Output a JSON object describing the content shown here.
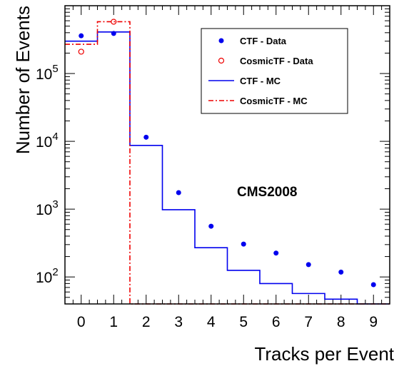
{
  "chart_data": {
    "type": "histogram",
    "xlabel": "Tracks per Event",
    "ylabel": "Number of Events",
    "xlim": [
      -0.5,
      9.5
    ],
    "ylim": [
      40,
      1000000
    ],
    "y_scale": "log",
    "x_ticks": [
      "0",
      "1",
      "2",
      "3",
      "4",
      "5",
      "6",
      "7",
      "8",
      "9"
    ],
    "y_ticks": [
      {
        "value": 100,
        "base": "10",
        "exp": "2"
      },
      {
        "value": 1000,
        "base": "10",
        "exp": "3"
      },
      {
        "value": 10000,
        "base": "10",
        "exp": "4"
      },
      {
        "value": 100000,
        "base": "10",
        "exp": "5"
      }
    ],
    "annotation": "CMS2008",
    "legend_position": "top-right",
    "series": [
      {
        "name": "CTF - Data",
        "style": "points-filled",
        "color": "#0000ee",
        "x": [
          0,
          1,
          2,
          3,
          4,
          5,
          6,
          7,
          8,
          9
        ],
        "values": [
          360000,
          390000,
          11500,
          1750,
          560,
          305,
          225,
          152,
          118,
          77
        ]
      },
      {
        "name": "CosmicTF - Data",
        "style": "points-open",
        "color": "#ee0000",
        "x": [
          0,
          1
        ],
        "values": [
          210000,
          580000
        ]
      },
      {
        "name": "CTF - MC",
        "style": "step-solid",
        "color": "#0000ee",
        "bin_edges": [
          -0.5,
          0.5,
          1.5,
          2.5,
          3.5,
          4.5,
          5.5,
          6.5,
          7.5,
          8.5,
          9.5
        ],
        "values": [
          300000,
          410000,
          8700,
          980,
          270,
          125,
          80,
          57,
          47,
          40
        ]
      },
      {
        "name": "CosmicTF - MC",
        "style": "step-dashdot",
        "color": "#ee0000",
        "bin_edges": [
          -0.5,
          0.5,
          1.5,
          2.5,
          3.5,
          4.5,
          5.5,
          6.5,
          7.5,
          8.5,
          9.5
        ],
        "values": [
          270000,
          580000,
          40,
          40,
          40,
          40,
          40,
          40,
          40,
          40
        ]
      }
    ]
  }
}
